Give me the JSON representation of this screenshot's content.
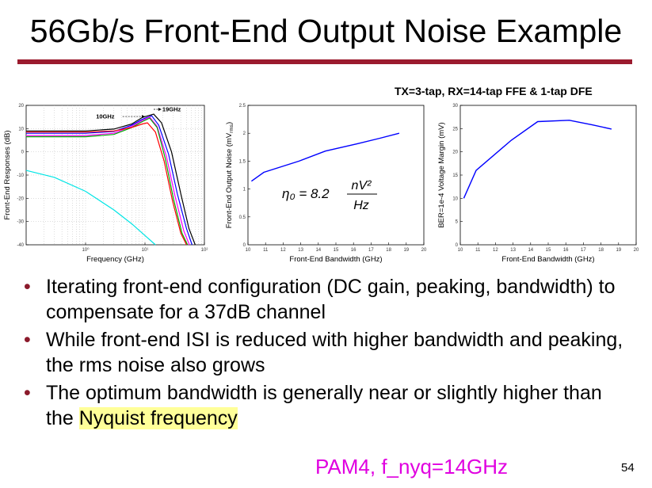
{
  "slide": {
    "title": "56Gb/s Front-End Output Noise Example",
    "figure_caption": "TX=3-tap, RX=14-tap FFE & 1-tap DFE",
    "bullets": [
      {
        "text": "Iterating front-end configuration (DC gain, peaking, bandwidth) to compensate for a 37dB channel"
      },
      {
        "text": "While front-end ISI is reduced with higher bandwidth and peaking, the rms noise also grows"
      },
      {
        "text_before": "The optimum bandwidth is generally near or slightly higher than the ",
        "highlight": "Nyquist frequency"
      }
    ],
    "footer_note": "PAM4, f_nyq=14GHz",
    "page_number": "54",
    "colors": {
      "title_rule": "#9b1b2e",
      "bullet": "#8b1a2b",
      "highlight": "#ffff99",
      "footer_note": "#e000e0"
    }
  },
  "chart_data": [
    {
      "type": "line",
      "xscale": "log",
      "xlabel": "Frequency (GHz)",
      "ylabel": "Front-End Responses (dB)",
      "xlim": [
        0.1,
        100
      ],
      "ylim": [
        -40,
        20
      ],
      "x_ticks": [
        {
          "value": 1,
          "label": "10⁰"
        },
        {
          "value": 10,
          "label": "10¹"
        },
        {
          "value": 100,
          "label": "10²"
        }
      ],
      "y_ticks": [
        -40,
        -30,
        -20,
        -10,
        0,
        10,
        20
      ],
      "grid": true,
      "annotations": [
        {
          "text": "10GHz",
          "arrow_to": 10
        },
        {
          "text": "19GHz",
          "arrow_from": 14,
          "arrow_to": 19
        }
      ],
      "series": [
        {
          "color": "#000000",
          "x": [
            0.1,
            1,
            3,
            6,
            9,
            14,
            19,
            28,
            40,
            55,
            70
          ],
          "y": [
            9,
            9,
            9.8,
            12,
            14.8,
            16.2,
            12.5,
            0,
            -18,
            -33,
            -40
          ]
        },
        {
          "color": "#0000ff",
          "x": [
            0.1,
            1,
            3,
            6,
            9,
            13,
            17,
            25,
            35,
            50,
            62
          ],
          "y": [
            8,
            8,
            8.8,
            11.5,
            14,
            15.5,
            11.5,
            -1,
            -18,
            -33,
            -40
          ]
        },
        {
          "color": "#ff00ff",
          "x": [
            0.1,
            1,
            3,
            6,
            9,
            12,
            16,
            23,
            32,
            45,
            56
          ],
          "y": [
            7,
            7,
            8,
            11,
            13.5,
            15,
            11,
            -2,
            -19,
            -34,
            -40
          ]
        },
        {
          "color": "#00aa00",
          "x": [
            0.1,
            1,
            3,
            6,
            9,
            12,
            16,
            22,
            30,
            42,
            52
          ],
          "y": [
            6.5,
            6.5,
            7.5,
            10.5,
            13,
            14.5,
            10.5,
            -3,
            -20,
            -35,
            -40
          ]
        },
        {
          "color": "#ff0000",
          "x": [
            0.1,
            1,
            3,
            6,
            9,
            11,
            15,
            21,
            29,
            40,
            50
          ],
          "y": [
            8.5,
            8.5,
            9,
            10.5,
            12,
            12.5,
            8.5,
            -4,
            -21,
            -35,
            -40
          ]
        },
        {
          "color": "#00e5e5",
          "x": [
            0.1,
            0.3,
            1,
            3,
            6,
            10,
            15
          ],
          "y": [
            -8,
            -11,
            -17,
            -25,
            -31,
            -36,
            -40
          ]
        }
      ]
    },
    {
      "type": "line",
      "xlabel": "Front-End Bandwidth (GHz)",
      "ylabel": "Front-End Output Noise (mV_rms)",
      "xlim": [
        10,
        20
      ],
      "ylim": [
        0,
        2.5
      ],
      "x_ticks": [
        10,
        11,
        12,
        13,
        14,
        15,
        16,
        17,
        18,
        19,
        20
      ],
      "y_ticks": [
        0.5,
        1,
        1.5,
        2,
        2.5
      ],
      "formula": {
        "lhs": "η₀ = 8.2",
        "numerator": "nV²",
        "denominator": "Hz"
      },
      "series": [
        {
          "color": "#0000ff",
          "x": [
            10.2,
            10.9,
            12.9,
            14.4,
            16.2,
            17.5,
            18.6
          ],
          "y": [
            1.14,
            1.3,
            1.5,
            1.68,
            1.81,
            1.91,
            2.0
          ]
        }
      ]
    },
    {
      "type": "line",
      "xlabel": "Front-End Bandwidth (GHz)",
      "ylabel": "BER=1e-4 Voltage Margin (mV)",
      "xlim": [
        10,
        20
      ],
      "ylim": [
        0,
        30
      ],
      "x_ticks": [
        10,
        11,
        12,
        13,
        14,
        15,
        16,
        17,
        18,
        19,
        20
      ],
      "y_ticks": [
        5,
        10,
        15,
        20,
        25,
        30
      ],
      "series": [
        {
          "color": "#0000ff",
          "x": [
            10.2,
            10.9,
            12.9,
            14.4,
            16.2,
            17.5,
            18.6
          ],
          "y": [
            10,
            16,
            22.5,
            26.5,
            26.8,
            25.8,
            24.9
          ]
        }
      ]
    }
  ]
}
